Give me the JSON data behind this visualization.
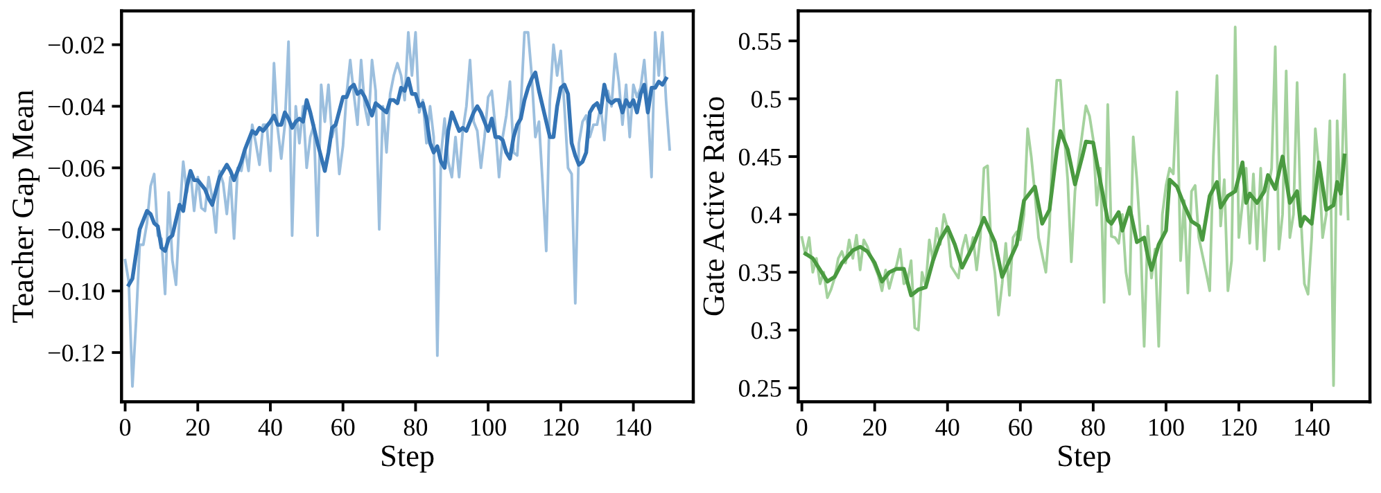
{
  "chart_data": [
    {
      "type": "line",
      "xlabel": "Step",
      "ylabel": "Teacher Gap Mean",
      "xlim": [
        -1,
        156.5
      ],
      "ylim": [
        -0.136,
        -0.009
      ],
      "xticks": [
        0,
        20,
        40,
        60,
        80,
        100,
        120,
        140
      ],
      "yticks": [
        {
          "value": -0.12,
          "label": "−0.12"
        },
        {
          "value": -0.1,
          "label": "−0.10"
        },
        {
          "value": -0.08,
          "label": "−0.08"
        },
        {
          "value": -0.06,
          "label": "−0.06"
        },
        {
          "value": -0.04,
          "label": "−0.04"
        },
        {
          "value": -0.02,
          "label": "−0.02"
        }
      ],
      "series": [
        {
          "color": "#9cbfde",
          "x": [
            0,
            1,
            2,
            3,
            4,
            5,
            6,
            7,
            8,
            9,
            10,
            11,
            12,
            13,
            14,
            15,
            16,
            17,
            18,
            19,
            20,
            21,
            22,
            23,
            24,
            25,
            26,
            27,
            28,
            29,
            30,
            31,
            32,
            33,
            34,
            35,
            36,
            37,
            38,
            39,
            40,
            41,
            42,
            43,
            44,
            45,
            46,
            47,
            48,
            49,
            50,
            51,
            52,
            53,
            54,
            55,
            56,
            57,
            58,
            59,
            60,
            61,
            62,
            63,
            64,
            65,
            66,
            67,
            68,
            69,
            70,
            71,
            72,
            73,
            74,
            75,
            76,
            77,
            78,
            79,
            80,
            81,
            82,
            83,
            84,
            85,
            86,
            87,
            88,
            89,
            90,
            91,
            92,
            93,
            94,
            95,
            96,
            97,
            98,
            99,
            100,
            101,
            102,
            103,
            104,
            105,
            106,
            107,
            108,
            109,
            110,
            111,
            112,
            113,
            114,
            115,
            116,
            117,
            118,
            119,
            120,
            121,
            122,
            123,
            124,
            125,
            126,
            127,
            128,
            129,
            130,
            131,
            132,
            133,
            134,
            135,
            136,
            137,
            138,
            139,
            140,
            141,
            142,
            143,
            144,
            145,
            146,
            147,
            148,
            149,
            150
          ],
          "values": [
            -0.09,
            -0.097,
            -0.131,
            -0.11,
            -0.085,
            -0.085,
            -0.078,
            -0.066,
            -0.062,
            -0.082,
            -0.083,
            -0.101,
            -0.068,
            -0.09,
            -0.098,
            -0.075,
            -0.058,
            -0.068,
            -0.061,
            -0.074,
            -0.063,
            -0.073,
            -0.074,
            -0.063,
            -0.07,
            -0.081,
            -0.061,
            -0.065,
            -0.075,
            -0.063,
            -0.083,
            -0.06,
            -0.061,
            -0.054,
            -0.061,
            -0.046,
            -0.052,
            -0.059,
            -0.046,
            -0.046,
            -0.061,
            -0.026,
            -0.047,
            -0.057,
            -0.046,
            -0.019,
            -0.082,
            -0.04,
            -0.052,
            -0.04,
            -0.06,
            -0.05,
            -0.046,
            -0.082,
            -0.033,
            -0.045,
            -0.033,
            -0.05,
            -0.045,
            -0.062,
            -0.053,
            -0.036,
            -0.025,
            -0.036,
            -0.046,
            -0.025,
            -0.04,
            -0.046,
            -0.025,
            -0.035,
            -0.08,
            -0.04,
            -0.055,
            -0.036,
            -0.03,
            -0.026,
            -0.03,
            -0.038,
            -0.016,
            -0.03,
            -0.016,
            -0.042,
            -0.038,
            -0.052,
            -0.04,
            -0.05,
            -0.121,
            -0.056,
            -0.044,
            -0.058,
            -0.063,
            -0.05,
            -0.063,
            -0.048,
            -0.04,
            -0.025,
            -0.045,
            -0.048,
            -0.06,
            -0.05,
            -0.037,
            -0.035,
            -0.047,
            -0.063,
            -0.05,
            -0.043,
            -0.032,
            -0.055,
            -0.056,
            -0.04,
            -0.016,
            -0.016,
            -0.03,
            -0.05,
            -0.045,
            -0.065,
            -0.087,
            -0.038,
            -0.02,
            -0.03,
            -0.022,
            -0.04,
            -0.06,
            -0.062,
            -0.104,
            -0.052,
            -0.045,
            -0.043,
            -0.05,
            -0.046,
            -0.046,
            -0.04,
            -0.051,
            -0.035,
            -0.04,
            -0.023,
            -0.032,
            -0.046,
            -0.033,
            -0.05,
            -0.033,
            -0.037,
            -0.034,
            -0.025,
            -0.04,
            -0.063,
            -0.016,
            -0.03,
            -0.016,
            -0.038,
            -0.054
          ]
        },
        {
          "color": "#3474b5",
          "x": [
            1,
            2,
            3,
            4,
            6,
            7,
            8,
            9,
            10,
            11,
            12,
            13,
            15,
            16,
            17,
            18,
            19,
            20,
            22,
            23,
            24,
            26,
            27,
            28,
            29,
            30,
            32,
            33,
            35,
            36,
            37,
            38,
            40,
            41,
            42,
            43,
            44,
            45,
            46,
            47,
            48,
            49,
            50,
            51,
            53,
            55,
            56,
            57,
            58,
            60,
            61,
            62,
            63,
            64,
            65,
            66,
            67,
            68,
            69,
            70,
            72,
            73,
            74,
            75,
            76,
            77,
            78,
            79,
            80,
            81,
            82,
            83,
            84,
            85,
            86,
            87,
            88,
            89,
            90,
            91,
            92,
            93,
            94,
            95,
            96,
            97,
            98,
            99,
            100,
            101,
            102,
            103,
            104,
            105,
            106,
            107,
            108,
            109,
            110,
            111,
            112,
            113,
            114,
            115,
            116,
            117,
            118,
            119,
            120,
            121,
            122,
            123,
            124,
            125,
            126,
            127,
            128,
            129,
            130,
            131,
            132,
            133,
            134,
            135,
            136,
            137,
            138,
            139,
            140,
            141,
            142,
            143,
            144,
            145,
            146,
            147,
            148,
            149
          ],
          "values": [
            -0.098,
            -0.096,
            -0.088,
            -0.08,
            -0.074,
            -0.075,
            -0.078,
            -0.079,
            -0.086,
            -0.087,
            -0.083,
            -0.082,
            -0.072,
            -0.074,
            -0.066,
            -0.061,
            -0.064,
            -0.064,
            -0.067,
            -0.07,
            -0.072,
            -0.063,
            -0.061,
            -0.059,
            -0.061,
            -0.064,
            -0.058,
            -0.054,
            -0.048,
            -0.049,
            -0.047,
            -0.048,
            -0.045,
            -0.043,
            -0.046,
            -0.046,
            -0.042,
            -0.044,
            -0.047,
            -0.045,
            -0.044,
            -0.045,
            -0.038,
            -0.042,
            -0.052,
            -0.061,
            -0.055,
            -0.047,
            -0.046,
            -0.037,
            -0.037,
            -0.034,
            -0.033,
            -0.036,
            -0.035,
            -0.037,
            -0.04,
            -0.043,
            -0.039,
            -0.04,
            -0.042,
            -0.038,
            -0.038,
            -0.039,
            -0.034,
            -0.035,
            -0.031,
            -0.036,
            -0.036,
            -0.04,
            -0.039,
            -0.044,
            -0.052,
            -0.055,
            -0.053,
            -0.058,
            -0.06,
            -0.048,
            -0.042,
            -0.045,
            -0.048,
            -0.047,
            -0.048,
            -0.045,
            -0.042,
            -0.04,
            -0.042,
            -0.045,
            -0.048,
            -0.044,
            -0.05,
            -0.05,
            -0.051,
            -0.055,
            -0.057,
            -0.05,
            -0.046,
            -0.044,
            -0.038,
            -0.034,
            -0.031,
            -0.029,
            -0.035,
            -0.04,
            -0.045,
            -0.05,
            -0.05,
            -0.04,
            -0.034,
            -0.033,
            -0.036,
            -0.052,
            -0.056,
            -0.059,
            -0.058,
            -0.055,
            -0.042,
            -0.04,
            -0.039,
            -0.042,
            -0.033,
            -0.038,
            -0.039,
            -0.038,
            -0.038,
            -0.042,
            -0.038,
            -0.04,
            -0.038,
            -0.042,
            -0.036,
            -0.033,
            -0.042,
            -0.034,
            -0.034,
            -0.032,
            -0.033,
            -0.031
          ]
        }
      ]
    },
    {
      "type": "line",
      "xlabel": "Step",
      "ylabel": "Gate Active Ratio",
      "xlim": [
        -1,
        156
      ],
      "ylim": [
        0.238,
        0.576
      ],
      "xticks": [
        0,
        20,
        40,
        60,
        80,
        100,
        120,
        140
      ],
      "yticks": [
        0.25,
        0.3,
        0.35,
        0.4,
        0.45,
        0.5,
        0.55
      ],
      "series": [
        {
          "color": "#a4d29d",
          "x": [
            0,
            1,
            2,
            3,
            4,
            5,
            6,
            7,
            8,
            9,
            10,
            11,
            12,
            13,
            14,
            15,
            16,
            17,
            18,
            19,
            20,
            21,
            22,
            23,
            24,
            25,
            26,
            27,
            28,
            29,
            30,
            31,
            32,
            33,
            34,
            35,
            36,
            37,
            38,
            39,
            40,
            41,
            42,
            43,
            44,
            45,
            46,
            47,
            48,
            49,
            50,
            51,
            52,
            53,
            54,
            55,
            56,
            57,
            58,
            59,
            60,
            61,
            62,
            63,
            64,
            65,
            66,
            67,
            68,
            69,
            70,
            71,
            72,
            73,
            74,
            75,
            76,
            77,
            78,
            79,
            80,
            81,
            82,
            83,
            84,
            85,
            86,
            87,
            88,
            89,
            90,
            91,
            92,
            93,
            94,
            95,
            96,
            97,
            98,
            99,
            100,
            101,
            102,
            103,
            104,
            105,
            106,
            107,
            108,
            109,
            110,
            111,
            112,
            113,
            114,
            115,
            116,
            117,
            118,
            119,
            120,
            121,
            122,
            123,
            124,
            125,
            126,
            127,
            128,
            129,
            130,
            131,
            132,
            133,
            134,
            135,
            136,
            137,
            138,
            139,
            140,
            141,
            142,
            143,
            144,
            145,
            146,
            147,
            148,
            149,
            150
          ],
          "values": [
            0.38,
            0.365,
            0.38,
            0.35,
            0.362,
            0.34,
            0.35,
            0.328,
            0.335,
            0.345,
            0.362,
            0.368,
            0.358,
            0.378,
            0.362,
            0.382,
            0.352,
            0.378,
            0.372,
            0.363,
            0.355,
            0.347,
            0.334,
            0.352,
            0.336,
            0.348,
            0.356,
            0.37,
            0.34,
            0.342,
            0.36,
            0.302,
            0.3,
            0.35,
            0.338,
            0.378,
            0.36,
            0.388,
            0.374,
            0.4,
            0.388,
            0.355,
            0.35,
            0.345,
            0.37,
            0.382,
            0.365,
            0.38,
            0.352,
            0.38,
            0.44,
            0.442,
            0.37,
            0.35,
            0.313,
            0.34,
            0.375,
            0.33,
            0.38,
            0.385,
            0.378,
            0.4,
            0.474,
            0.45,
            0.418,
            0.38,
            0.365,
            0.35,
            0.39,
            0.47,
            0.516,
            0.516,
            0.47,
            0.43,
            0.359,
            0.42,
            0.446,
            0.47,
            0.494,
            0.485,
            0.465,
            0.408,
            0.44,
            0.324,
            0.495,
            0.381,
            0.38,
            0.375,
            0.4,
            0.35,
            0.331,
            0.467,
            0.43,
            0.38,
            0.286,
            0.39,
            0.345,
            0.37,
            0.286,
            0.4,
            0.425,
            0.44,
            0.435,
            0.506,
            0.36,
            0.412,
            0.332,
            0.42,
            0.425,
            0.38,
            0.365,
            0.35,
            0.334,
            0.45,
            0.52,
            0.39,
            0.43,
            0.334,
            0.36,
            0.562,
            0.38,
            0.41,
            0.44,
            0.375,
            0.435,
            0.37,
            0.44,
            0.36,
            0.42,
            0.44,
            0.545,
            0.37,
            0.4,
            0.524,
            0.38,
            0.4,
            0.514,
            0.4,
            0.34,
            0.331,
            0.38,
            0.474,
            0.44,
            0.38,
            0.4,
            0.481,
            0.252,
            0.481,
            0.4,
            0.521,
            0.396
          ]
        },
        {
          "color": "#4a9a40",
          "x": [
            1,
            3,
            5,
            7,
            9,
            11,
            14,
            16,
            18,
            20,
            22,
            24,
            26,
            28,
            30,
            32,
            34,
            36,
            38,
            40,
            42,
            44,
            47,
            50,
            53,
            55,
            57,
            59,
            61,
            64,
            66,
            68,
            70,
            71,
            73,
            75,
            77,
            78,
            80,
            82,
            84,
            85,
            87,
            88,
            90,
            92,
            94,
            95,
            96,
            98,
            100,
            101,
            103,
            105,
            107,
            109,
            110,
            112,
            114,
            115,
            117,
            119,
            121,
            122,
            123,
            125,
            127,
            128,
            130,
            132,
            134,
            136,
            137,
            138,
            140,
            142,
            144,
            146,
            147,
            148,
            149
          ],
          "values": [
            0.366,
            0.362,
            0.352,
            0.342,
            0.346,
            0.358,
            0.369,
            0.372,
            0.368,
            0.358,
            0.342,
            0.35,
            0.353,
            0.353,
            0.33,
            0.335,
            0.337,
            0.36,
            0.378,
            0.389,
            0.374,
            0.354,
            0.373,
            0.397,
            0.376,
            0.346,
            0.36,
            0.374,
            0.412,
            0.424,
            0.392,
            0.404,
            0.455,
            0.472,
            0.456,
            0.426,
            0.45,
            0.463,
            0.462,
            0.428,
            0.395,
            0.392,
            0.402,
            0.386,
            0.406,
            0.376,
            0.38,
            0.364,
            0.352,
            0.374,
            0.386,
            0.43,
            0.424,
            0.408,
            0.394,
            0.39,
            0.378,
            0.416,
            0.428,
            0.406,
            0.416,
            0.42,
            0.445,
            0.41,
            0.418,
            0.41,
            0.42,
            0.434,
            0.422,
            0.45,
            0.41,
            0.42,
            0.39,
            0.398,
            0.392,
            0.445,
            0.404,
            0.408,
            0.428,
            0.418,
            0.451
          ]
        }
      ]
    }
  ]
}
